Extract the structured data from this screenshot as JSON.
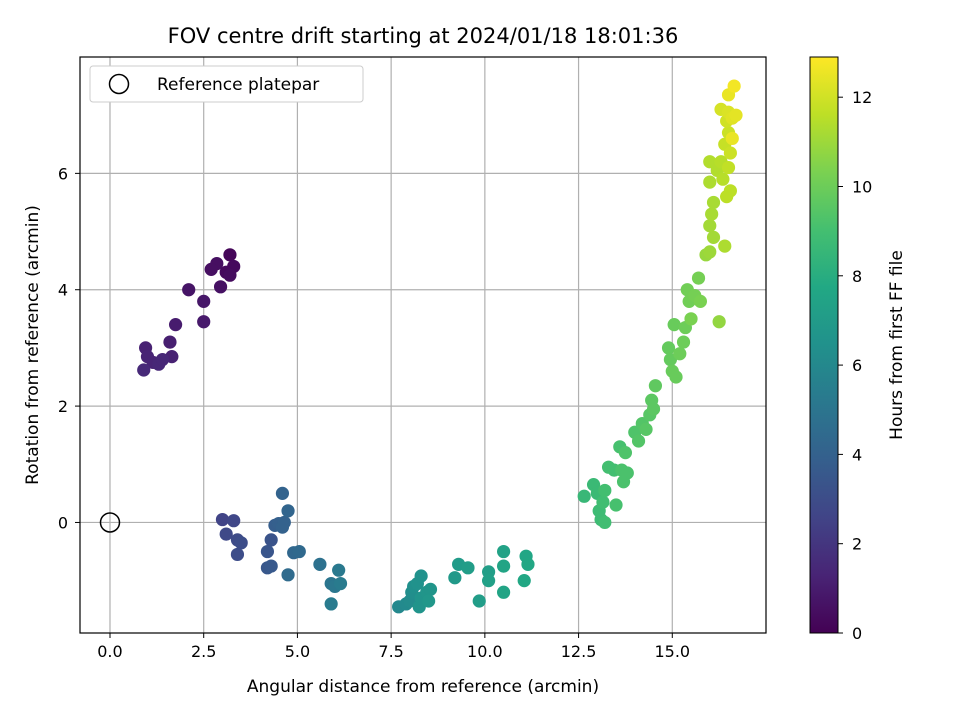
{
  "chart_data": {
    "type": "scatter",
    "title": "FOV centre drift starting at 2024/01/18 18:01:36",
    "xlabel": "Angular distance from reference (arcmin)",
    "ylabel": "Rotation from reference (arcmin)",
    "xlim": [
      -0.8,
      17.5
    ],
    "ylim": [
      -1.9,
      8.0
    ],
    "xticks": [
      0.0,
      2.5,
      5.0,
      7.5,
      10.0,
      12.5,
      15.0
    ],
    "xtick_labels": [
      "0.0",
      "2.5",
      "5.0",
      "7.5",
      "10.0",
      "12.5",
      "15.0"
    ],
    "yticks": [
      0,
      2,
      4,
      6
    ],
    "ytick_labels": [
      "0",
      "2",
      "4",
      "6"
    ],
    "grid": true,
    "legend_position": "top-left",
    "reference": {
      "label": "Reference platepar",
      "x": 0.0,
      "y": 0.0
    },
    "colorbar": {
      "label": "Hours from first FF file",
      "min": 0,
      "max": 12.9,
      "ticks": [
        0,
        2,
        4,
        6,
        8,
        10,
        12
      ],
      "tick_labels": [
        "0",
        "2",
        "4",
        "6",
        "8",
        "10",
        "12"
      ],
      "colormap": "viridis"
    },
    "points": [
      {
        "x": 3.2,
        "y": 4.6,
        "t": 0.2
      },
      {
        "x": 3.3,
        "y": 4.4,
        "t": 0.3
      },
      {
        "x": 3.1,
        "y": 4.3,
        "t": 0.3
      },
      {
        "x": 3.2,
        "y": 4.25,
        "t": 0.4
      },
      {
        "x": 2.85,
        "y": 4.45,
        "t": 0.5
      },
      {
        "x": 2.7,
        "y": 4.35,
        "t": 0.5
      },
      {
        "x": 2.95,
        "y": 4.05,
        "t": 0.6
      },
      {
        "x": 2.1,
        "y": 4.0,
        "t": 0.7
      },
      {
        "x": 2.5,
        "y": 3.8,
        "t": 0.8
      },
      {
        "x": 2.5,
        "y": 3.45,
        "t": 0.9
      },
      {
        "x": 1.75,
        "y": 3.4,
        "t": 1.0
      },
      {
        "x": 1.6,
        "y": 3.1,
        "t": 1.1
      },
      {
        "x": 1.65,
        "y": 2.85,
        "t": 1.2
      },
      {
        "x": 0.95,
        "y": 3.0,
        "t": 1.2
      },
      {
        "x": 1.0,
        "y": 2.85,
        "t": 1.3
      },
      {
        "x": 1.15,
        "y": 2.75,
        "t": 1.3
      },
      {
        "x": 1.3,
        "y": 2.72,
        "t": 1.4
      },
      {
        "x": 1.4,
        "y": 2.8,
        "t": 1.4
      },
      {
        "x": 0.9,
        "y": 2.62,
        "t": 1.5
      },
      {
        "x": 3.0,
        "y": 0.05,
        "t": 2.6
      },
      {
        "x": 3.3,
        "y": 0.03,
        "t": 2.7
      },
      {
        "x": 3.1,
        "y": -0.2,
        "t": 2.8
      },
      {
        "x": 3.4,
        "y": -0.3,
        "t": 2.9
      },
      {
        "x": 3.5,
        "y": -0.35,
        "t": 3.0
      },
      {
        "x": 3.4,
        "y": -0.55,
        "t": 3.0
      },
      {
        "x": 4.3,
        "y": -0.3,
        "t": 3.3
      },
      {
        "x": 4.2,
        "y": -0.5,
        "t": 3.4
      },
      {
        "x": 4.2,
        "y": -0.78,
        "t": 3.5
      },
      {
        "x": 4.3,
        "y": -0.75,
        "t": 3.6
      },
      {
        "x": 4.4,
        "y": -0.05,
        "t": 3.8
      },
      {
        "x": 4.5,
        "y": -0.02,
        "t": 3.9
      },
      {
        "x": 4.6,
        "y": -0.08,
        "t": 4.0
      },
      {
        "x": 4.65,
        "y": 0.0,
        "t": 4.0
      },
      {
        "x": 4.6,
        "y": 0.5,
        "t": 4.1
      },
      {
        "x": 4.75,
        "y": 0.2,
        "t": 4.2
      },
      {
        "x": 4.9,
        "y": -0.52,
        "t": 4.3
      },
      {
        "x": 5.05,
        "y": -0.5,
        "t": 4.4
      },
      {
        "x": 4.75,
        "y": -0.9,
        "t": 4.5
      },
      {
        "x": 5.6,
        "y": -0.72,
        "t": 4.8
      },
      {
        "x": 5.9,
        "y": -1.05,
        "t": 5.0
      },
      {
        "x": 6.0,
        "y": -1.1,
        "t": 5.1
      },
      {
        "x": 6.1,
        "y": -0.82,
        "t": 5.2
      },
      {
        "x": 6.15,
        "y": -1.05,
        "t": 5.3
      },
      {
        "x": 5.9,
        "y": -1.4,
        "t": 5.3
      },
      {
        "x": 7.7,
        "y": -1.45,
        "t": 6.0
      },
      {
        "x": 7.9,
        "y": -1.4,
        "t": 6.1
      },
      {
        "x": 8.0,
        "y": -1.35,
        "t": 6.2
      },
      {
        "x": 8.05,
        "y": -1.2,
        "t": 6.3
      },
      {
        "x": 8.1,
        "y": -1.1,
        "t": 6.4
      },
      {
        "x": 8.2,
        "y": -1.05,
        "t": 6.5
      },
      {
        "x": 8.3,
        "y": -0.92,
        "t": 6.5
      },
      {
        "x": 8.25,
        "y": -1.45,
        "t": 6.6
      },
      {
        "x": 8.3,
        "y": -1.3,
        "t": 6.6
      },
      {
        "x": 8.45,
        "y": -1.2,
        "t": 6.7
      },
      {
        "x": 8.55,
        "y": -1.15,
        "t": 6.7
      },
      {
        "x": 8.5,
        "y": -1.35,
        "t": 6.8
      },
      {
        "x": 9.2,
        "y": -0.95,
        "t": 6.9
      },
      {
        "x": 9.3,
        "y": -0.72,
        "t": 7.0
      },
      {
        "x": 9.55,
        "y": -0.78,
        "t": 7.1
      },
      {
        "x": 9.85,
        "y": -1.35,
        "t": 7.1
      },
      {
        "x": 10.1,
        "y": -0.85,
        "t": 7.2
      },
      {
        "x": 10.1,
        "y": -1.0,
        "t": 7.3
      },
      {
        "x": 10.5,
        "y": -0.5,
        "t": 7.4
      },
      {
        "x": 10.5,
        "y": -0.75,
        "t": 7.5
      },
      {
        "x": 10.5,
        "y": -1.2,
        "t": 7.5
      },
      {
        "x": 11.1,
        "y": -0.58,
        "t": 7.6
      },
      {
        "x": 11.15,
        "y": -0.72,
        "t": 7.7
      },
      {
        "x": 11.05,
        "y": -1.0,
        "t": 7.7
      },
      {
        "x": 12.65,
        "y": 0.45,
        "t": 8.6
      },
      {
        "x": 12.9,
        "y": 0.65,
        "t": 8.7
      },
      {
        "x": 13.0,
        "y": 0.5,
        "t": 8.7
      },
      {
        "x": 13.05,
        "y": 0.2,
        "t": 8.8
      },
      {
        "x": 13.1,
        "y": 0.05,
        "t": 8.8
      },
      {
        "x": 13.2,
        "y": 0.0,
        "t": 8.9
      },
      {
        "x": 13.15,
        "y": 0.35,
        "t": 8.9
      },
      {
        "x": 13.2,
        "y": 0.55,
        "t": 9.0
      },
      {
        "x": 13.3,
        "y": 0.95,
        "t": 9.0
      },
      {
        "x": 13.45,
        "y": 0.9,
        "t": 9.0
      },
      {
        "x": 13.5,
        "y": 0.3,
        "t": 9.1
      },
      {
        "x": 13.6,
        "y": 1.3,
        "t": 9.1
      },
      {
        "x": 13.65,
        "y": 0.9,
        "t": 9.2
      },
      {
        "x": 13.7,
        "y": 0.7,
        "t": 9.2
      },
      {
        "x": 13.8,
        "y": 0.85,
        "t": 9.2
      },
      {
        "x": 13.75,
        "y": 1.2,
        "t": 9.3
      },
      {
        "x": 14.0,
        "y": 1.55,
        "t": 9.3
      },
      {
        "x": 14.1,
        "y": 1.4,
        "t": 9.4
      },
      {
        "x": 14.2,
        "y": 1.7,
        "t": 9.4
      },
      {
        "x": 14.3,
        "y": 1.6,
        "t": 9.5
      },
      {
        "x": 14.4,
        "y": 1.85,
        "t": 9.5
      },
      {
        "x": 14.45,
        "y": 2.1,
        "t": 9.6
      },
      {
        "x": 14.5,
        "y": 1.95,
        "t": 9.6
      },
      {
        "x": 14.55,
        "y": 2.35,
        "t": 9.7
      },
      {
        "x": 14.9,
        "y": 3.0,
        "t": 9.8
      },
      {
        "x": 14.95,
        "y": 2.8,
        "t": 9.8
      },
      {
        "x": 15.05,
        "y": 3.4,
        "t": 9.9
      },
      {
        "x": 15.0,
        "y": 2.6,
        "t": 9.9
      },
      {
        "x": 15.1,
        "y": 2.5,
        "t": 9.9
      },
      {
        "x": 15.2,
        "y": 2.9,
        "t": 10.0
      },
      {
        "x": 15.3,
        "y": 3.1,
        "t": 10.0
      },
      {
        "x": 15.35,
        "y": 3.35,
        "t": 10.0
      },
      {
        "x": 15.4,
        "y": 4.0,
        "t": 10.1
      },
      {
        "x": 15.45,
        "y": 3.8,
        "t": 10.1
      },
      {
        "x": 15.6,
        "y": 3.9,
        "t": 10.2
      },
      {
        "x": 15.7,
        "y": 4.2,
        "t": 10.2
      },
      {
        "x": 15.75,
        "y": 3.8,
        "t": 10.3
      },
      {
        "x": 15.5,
        "y": 3.5,
        "t": 10.3
      },
      {
        "x": 16.25,
        "y": 3.45,
        "t": 10.8
      },
      {
        "x": 15.9,
        "y": 4.6,
        "t": 10.9
      },
      {
        "x": 16.0,
        "y": 4.65,
        "t": 11.0
      },
      {
        "x": 16.1,
        "y": 4.9,
        "t": 11.1
      },
      {
        "x": 16.0,
        "y": 5.1,
        "t": 11.1
      },
      {
        "x": 16.05,
        "y": 5.3,
        "t": 11.2
      },
      {
        "x": 16.1,
        "y": 5.5,
        "t": 11.2
      },
      {
        "x": 16.4,
        "y": 4.75,
        "t": 11.3
      },
      {
        "x": 16.0,
        "y": 5.85,
        "t": 11.3
      },
      {
        "x": 16.0,
        "y": 6.2,
        "t": 11.4
      },
      {
        "x": 16.2,
        "y": 6.05,
        "t": 11.4
      },
      {
        "x": 16.3,
        "y": 6.2,
        "t": 11.5
      },
      {
        "x": 16.35,
        "y": 5.9,
        "t": 11.5
      },
      {
        "x": 16.45,
        "y": 5.6,
        "t": 11.6
      },
      {
        "x": 16.55,
        "y": 5.7,
        "t": 11.6
      },
      {
        "x": 16.5,
        "y": 6.1,
        "t": 11.7
      },
      {
        "x": 16.4,
        "y": 6.5,
        "t": 11.8
      },
      {
        "x": 16.5,
        "y": 6.7,
        "t": 11.9
      },
      {
        "x": 16.55,
        "y": 6.35,
        "t": 11.9
      },
      {
        "x": 16.45,
        "y": 6.9,
        "t": 12.0
      },
      {
        "x": 16.3,
        "y": 7.1,
        "t": 12.1
      },
      {
        "x": 16.5,
        "y": 7.05,
        "t": 12.2
      },
      {
        "x": 16.6,
        "y": 6.95,
        "t": 12.3
      },
      {
        "x": 16.7,
        "y": 7.0,
        "t": 12.4
      },
      {
        "x": 16.5,
        "y": 7.35,
        "t": 12.5
      },
      {
        "x": 16.6,
        "y": 6.6,
        "t": 12.5
      },
      {
        "x": 16.65,
        "y": 7.5,
        "t": 12.7
      }
    ]
  }
}
